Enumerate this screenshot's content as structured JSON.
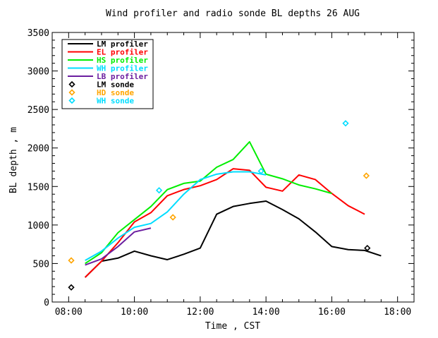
{
  "chart_data": {
    "type": "line",
    "title": "Wind profiler and radio sonde BL depths  26 AUG",
    "xlabel": "Time , CST",
    "ylabel": "BL depth , m",
    "xlim": [
      7.5,
      18.5
    ],
    "ylim": [
      0,
      3500
    ],
    "x_ticks": [
      8,
      10,
      12,
      14,
      16,
      18
    ],
    "x_tick_labels": [
      "08:00",
      "10:00",
      "12:00",
      "14:00",
      "16:00",
      "18:00"
    ],
    "y_ticks": [
      0,
      500,
      1000,
      1500,
      2000,
      2500,
      3000,
      3500
    ],
    "y_tick_labels": [
      "0",
      "500",
      "1000",
      "1500",
      "2000",
      "2500",
      "3000",
      "3500"
    ],
    "grid": false,
    "legend_position": "top-left",
    "series": [
      {
        "name": "LM profiler",
        "kind": "line",
        "color": "#000000",
        "x": [
          8.5,
          9.0,
          9.5,
          10.0,
          10.5,
          11.0,
          11.5,
          12.0,
          12.5,
          13.0,
          13.5,
          14.0,
          14.5,
          15.0,
          15.5,
          16.0,
          16.5,
          17.0,
          17.5
        ],
        "y": [
          320,
          530,
          570,
          660,
          600,
          550,
          620,
          700,
          1140,
          1240,
          1280,
          1310,
          1200,
          1080,
          910,
          720,
          680,
          670,
          600
        ]
      },
      {
        "name": "EL profiler",
        "kind": "line",
        "color": "#ff0000",
        "x": [
          8.5,
          9.0,
          9.5,
          10.0,
          10.5,
          11.0,
          11.5,
          12.0,
          12.5,
          13.0,
          13.5,
          14.0,
          14.5,
          15.0,
          15.5,
          16.0,
          16.5,
          17.0
        ],
        "y": [
          320,
          530,
          770,
          1040,
          1160,
          1380,
          1460,
          1510,
          1590,
          1730,
          1710,
          1490,
          1440,
          1650,
          1590,
          1410,
          1250,
          1140
        ]
      },
      {
        "name": "HS profiler",
        "kind": "line",
        "color": "#00ee00",
        "x": [
          8.5,
          9.0,
          9.5,
          10.0,
          10.5,
          11.0,
          11.5,
          12.0,
          12.5,
          13.0,
          13.5,
          14.0,
          14.5,
          15.0,
          15.5,
          16.0
        ],
        "y": [
          500,
          640,
          900,
          1070,
          1240,
          1460,
          1540,
          1570,
          1750,
          1850,
          2080,
          1660,
          1600,
          1520,
          1470,
          1410
        ]
      },
      {
        "name": "WH profiler",
        "kind": "line",
        "color": "#00ddff",
        "x": [
          8.5,
          9.0,
          9.5,
          10.0,
          10.5,
          11.0,
          11.5,
          12.0,
          12.5,
          13.0,
          13.5,
          14.0
        ],
        "y": [
          540,
          660,
          830,
          970,
          1020,
          1170,
          1400,
          1590,
          1660,
          1690,
          1690,
          1650
        ]
      },
      {
        "name": "LB profiler",
        "kind": "line",
        "color": "#6b1fa0",
        "x": [
          8.5,
          9.0,
          9.5,
          10.0,
          10.5
        ],
        "y": [
          480,
          560,
          720,
          910,
          960
        ]
      },
      {
        "name": "LM sonde",
        "kind": "marker",
        "color": "#000000",
        "x": [
          8.08,
          17.08
        ],
        "y": [
          190,
          700
        ]
      },
      {
        "name": "HD sonde",
        "kind": "marker",
        "color": "#ffa500",
        "x": [
          8.08,
          11.17,
          17.05
        ],
        "y": [
          540,
          1100,
          1640
        ]
      },
      {
        "name": "WH sonde",
        "kind": "marker",
        "color": "#00ddff",
        "x": [
          10.75,
          13.85,
          16.42
        ],
        "y": [
          1450,
          1700,
          2320
        ]
      }
    ]
  }
}
